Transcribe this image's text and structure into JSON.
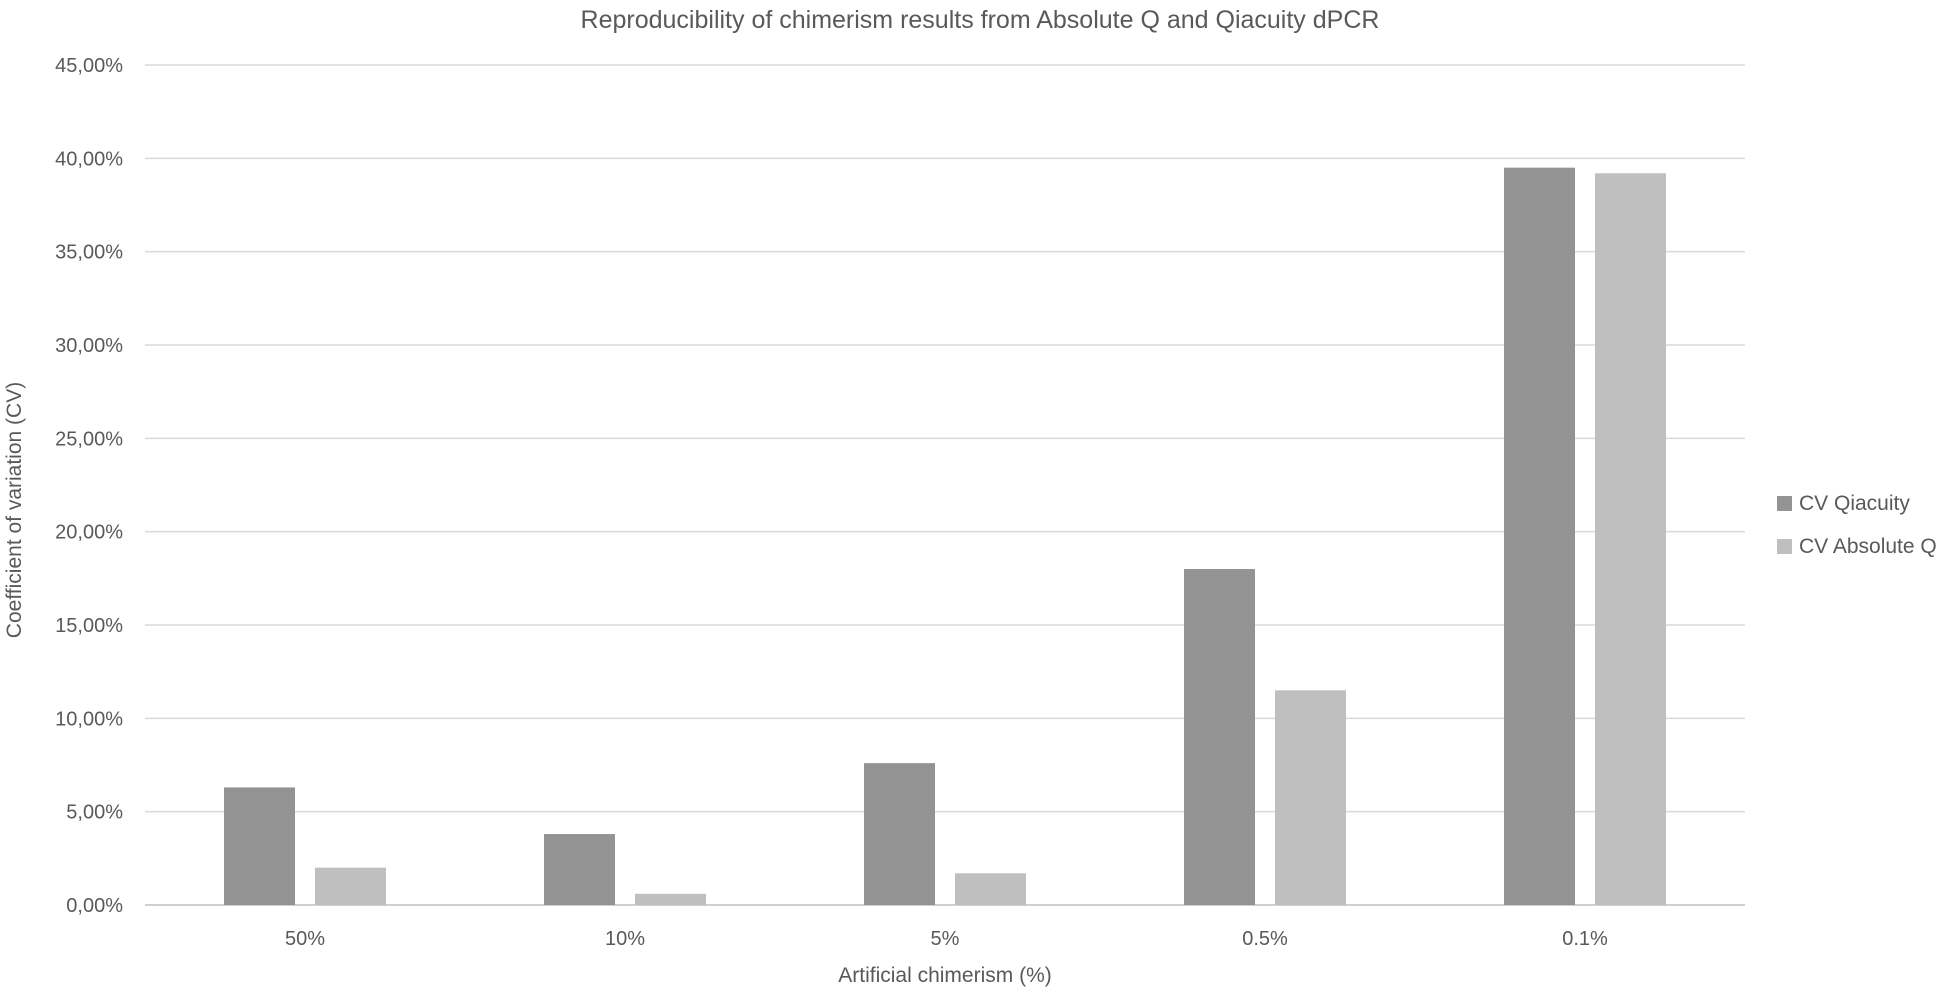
{
  "chart_data": {
    "type": "bar",
    "title": "Reproducibility of chimerism results from Absolute Q and Qiacuity dPCR",
    "xlabel": "Artificial chimerism (%)",
    "ylabel": "Coefficient of variation (CV)",
    "categories": [
      "50%",
      "10%",
      "5%",
      "0.5%",
      "0.1%"
    ],
    "series": [
      {
        "name": "CV Qiacuity",
        "color": "#939393",
        "values": [
          6.3,
          3.8,
          7.6,
          18.0,
          39.5
        ]
      },
      {
        "name": "CV Absolute Q",
        "color": "#bfbfbf",
        "values": [
          2.0,
          0.6,
          1.7,
          11.5,
          39.2
        ]
      }
    ],
    "ylim": [
      0,
      45
    ],
    "yticks": [
      0,
      5,
      10,
      15,
      20,
      25,
      30,
      35,
      40,
      45
    ],
    "ytick_labels": [
      "0,00%",
      "5,00%",
      "10,00%",
      "15,00%",
      "20,00%",
      "25,00%",
      "30,00%",
      "35,00%",
      "40,00%",
      "45,00%"
    ],
    "grid": true,
    "legend_position": "right"
  }
}
